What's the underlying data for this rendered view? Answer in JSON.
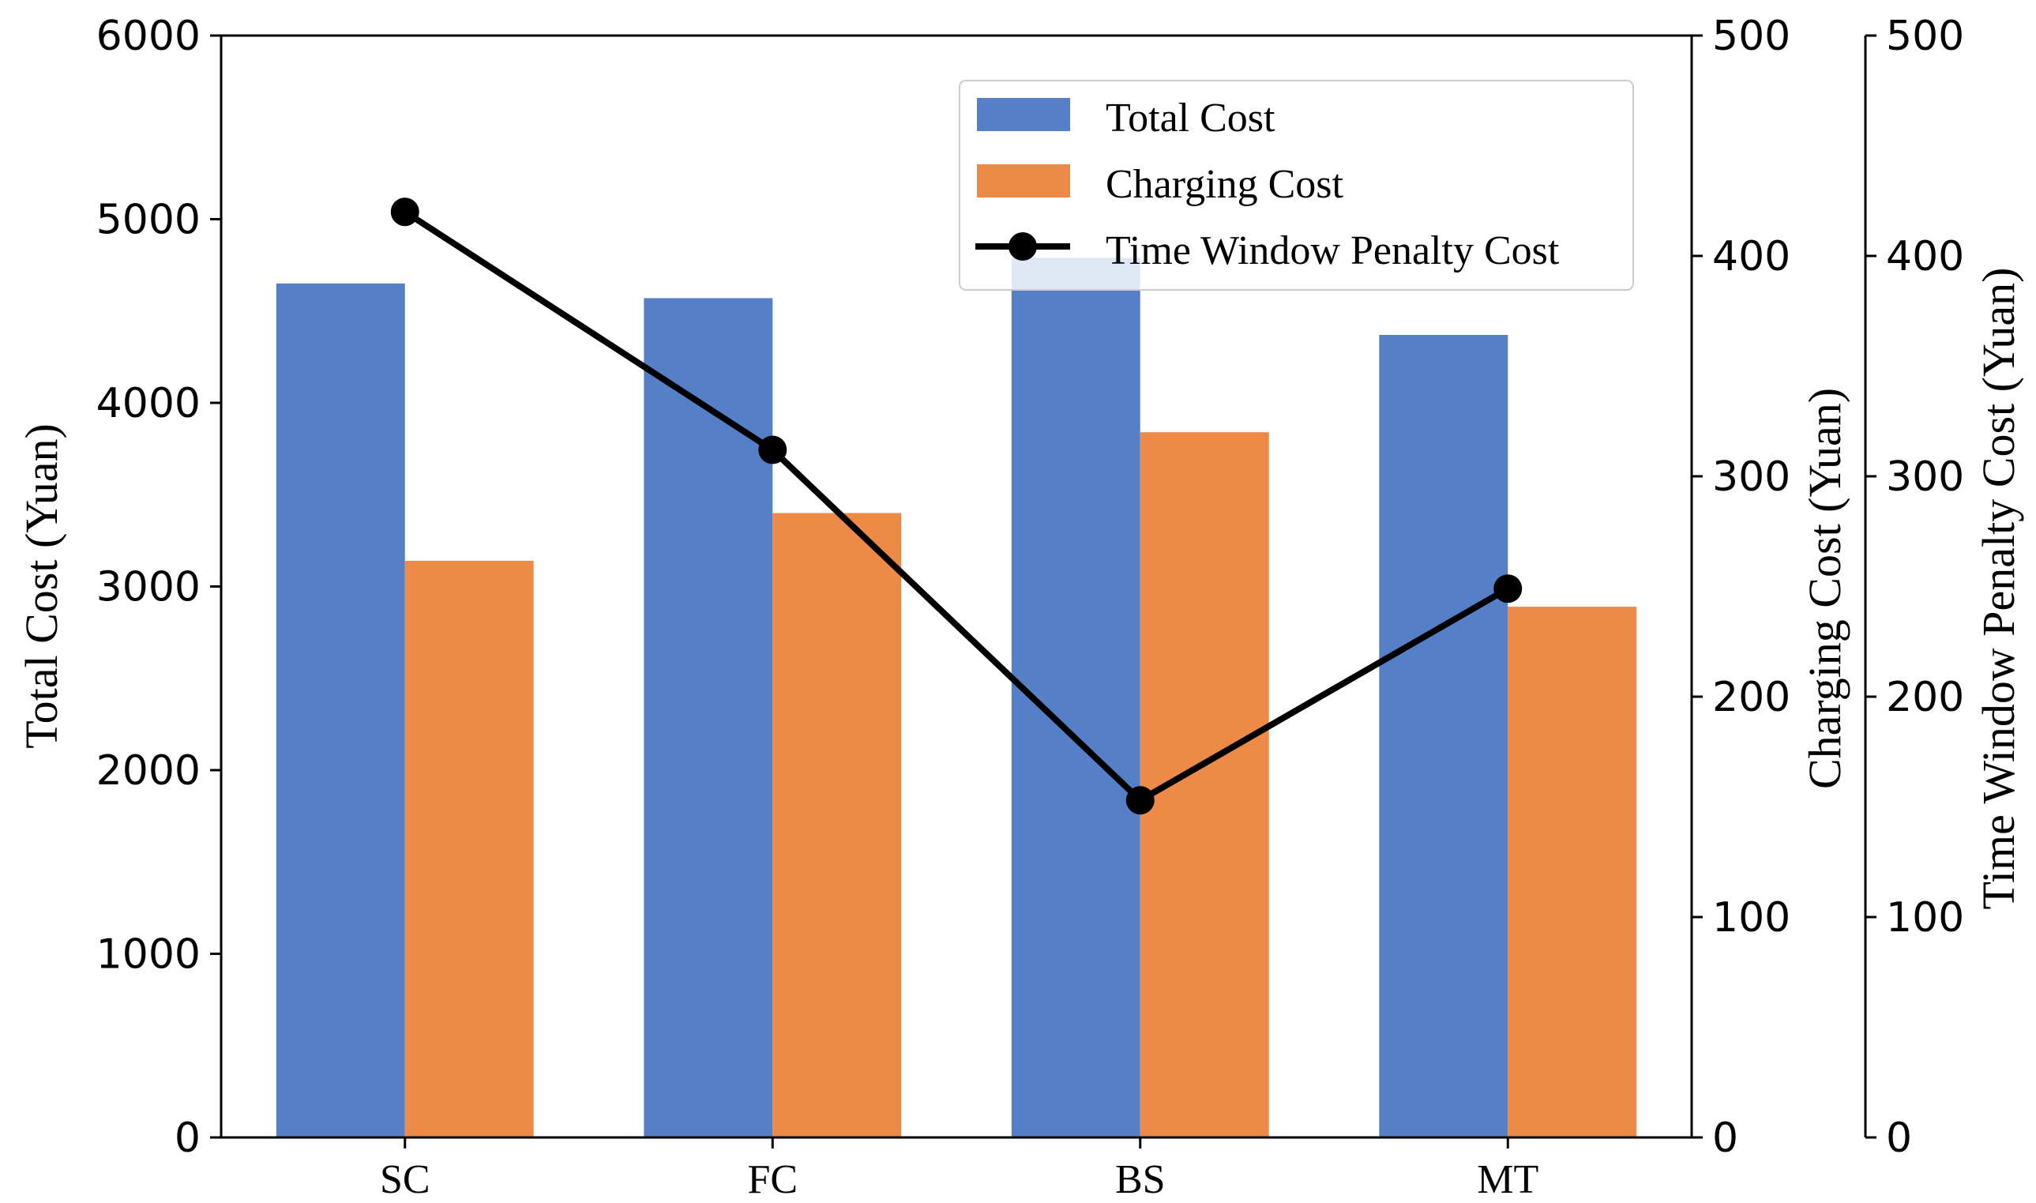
{
  "chart_data": {
    "type": "bar",
    "categories": [
      "SC",
      "FC",
      "BS",
      "MT"
    ],
    "series": [
      {
        "name": "Total Cost",
        "axis": "left",
        "kind": "bar",
        "color": "#5580C8",
        "values": [
          4650,
          4570,
          4790,
          4370
        ]
      },
      {
        "name": "Charging Cost",
        "axis": "left",
        "kind": "bar",
        "color": "#EE8A47",
        "values": [
          3140,
          3400,
          3840,
          2890
        ]
      },
      {
        "name": "Time Window Penalty Cost",
        "axis": "right2",
        "kind": "line",
        "color": "#000000",
        "values": [
          420,
          312,
          153,
          249
        ]
      }
    ],
    "axes": {
      "left": {
        "label": "Total Cost (Yuan)",
        "ylim": [
          0,
          6000
        ],
        "ticks": [
          "0",
          "1000",
          "2000",
          "3000",
          "4000",
          "5000",
          "6000"
        ]
      },
      "right1": {
        "label": "Charging Cost (Yuan)",
        "ylim": [
          0,
          500
        ],
        "ticks": [
          "0",
          "100",
          "200",
          "300",
          "400",
          "500"
        ]
      },
      "right2": {
        "label": "Time Window Penalty Cost (Yuan)",
        "ylim": [
          0,
          500
        ],
        "ticks": [
          "0",
          "100",
          "200",
          "300",
          "400",
          "500"
        ]
      }
    },
    "legend": {
      "position": "top-right",
      "items": [
        "Total Cost",
        "Charging Cost",
        "Time Window Penalty Cost"
      ]
    },
    "grid": false
  }
}
